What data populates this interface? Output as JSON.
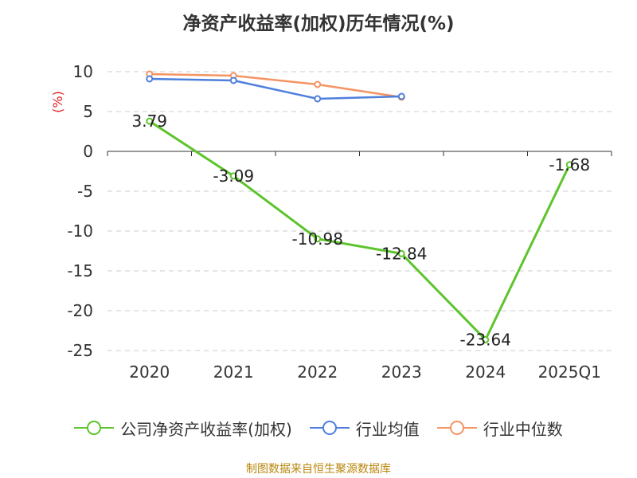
{
  "title": "净资产收益率(加权)历年情况(%)",
  "source": "制图数据来自恒生聚源数据库",
  "chart_data": {
    "type": "line",
    "title": "净资产收益率(加权)历年情况(%)",
    "ylabel": "(%)",
    "xlabel": "",
    "categories": [
      "2020",
      "2021",
      "2022",
      "2023",
      "2024",
      "2025Q1"
    ],
    "ylim": [
      -25,
      10
    ],
    "yticks": [
      10,
      5,
      0,
      -5,
      -10,
      -15,
      -20,
      -25
    ],
    "grid": true,
    "legend_position": "bottom",
    "series": [
      {
        "name": "公司净资产收益率(加权)",
        "color": "#5dc42c",
        "values": [
          3.79,
          -3.09,
          -10.98,
          -12.84,
          -23.64,
          -1.68
        ],
        "labels": [
          "3.79",
          "-3.09",
          "-10.98",
          "-12.84",
          "-23.64",
          "-1.68"
        ]
      },
      {
        "name": "行业均值",
        "color": "#4f7fdc",
        "values": [
          9.1,
          8.9,
          6.6,
          6.9,
          null,
          null
        ]
      },
      {
        "name": "行业中位数",
        "color": "#f59463",
        "values": [
          9.7,
          9.5,
          8.4,
          6.8,
          null,
          null
        ]
      }
    ]
  }
}
